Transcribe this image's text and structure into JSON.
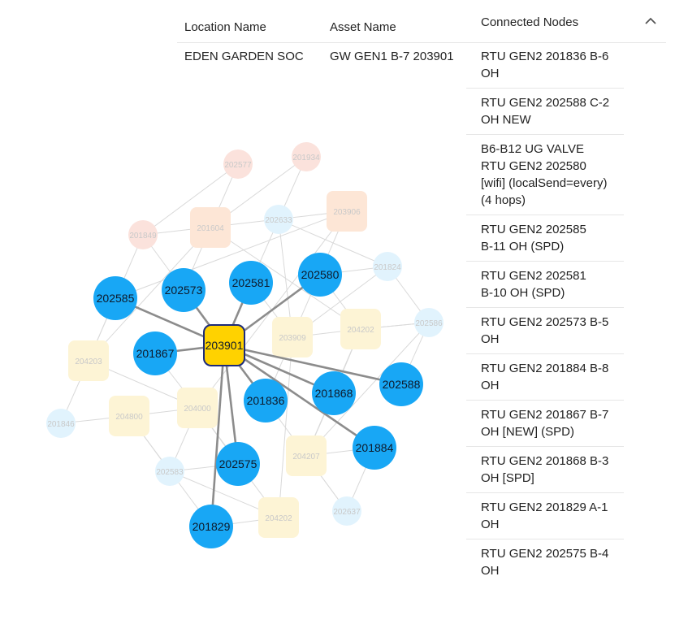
{
  "table": {
    "headers": {
      "location": "Location Name",
      "asset": "Asset Name",
      "connected": "Connected Nodes"
    },
    "row": {
      "location": "EDEN GARDEN SOC",
      "asset": "GW GEN1 B-7 203901",
      "connected_nodes": [
        "RTU GEN2 201836 B-6\nOH",
        "RTU GEN2 202588 C-2\nOH NEW",
        "B6-B12 UG VALVE\nRTU GEN2 202580\n[wifi] (localSend=every)\n(4 hops)",
        "RTU GEN2 202585\nB-11 OH (SPD)",
        "RTU GEN2 202581\nB-10 OH (SPD)",
        "RTU GEN2 202573 B-5\nOH",
        "RTU GEN2 201884 B-8\nOH",
        "RTU GEN2 201867 B-7\nOH [NEW] (SPD)",
        "RTU GEN2 201868 B-3\nOH [SPD]",
        "RTU GEN2 201829 A-1\nOH",
        "RTU GEN2 202575 B-4\nOH"
      ]
    },
    "collapse_icon": "chevron-up-icon"
  },
  "graph": {
    "colors": {
      "center_fill": "#ffd200",
      "center_stroke": "#1c2a7a",
      "connected_fill": "#18a7f5",
      "edge_strong": "#8c8c8c",
      "edge_faint": "#d9d9d9",
      "faint_blue": "#e1f3fd",
      "faint_yellow": "#fdf4d5",
      "faint_orange": "#fde6d6",
      "faint_pink": "#fbe2dc"
    },
    "center": {
      "label": "203901"
    },
    "connected": [
      {
        "label": "202585"
      },
      {
        "label": "202573"
      },
      {
        "label": "202581"
      },
      {
        "label": "202580"
      },
      {
        "label": "201867"
      },
      {
        "label": "201836"
      },
      {
        "label": "201868"
      },
      {
        "label": "202588"
      },
      {
        "label": "201884"
      },
      {
        "label": "202575"
      },
      {
        "label": "201829"
      }
    ],
    "background_nodes": [
      {
        "label": "202577",
        "kind": "pink-circle"
      },
      {
        "label": "201934",
        "kind": "pink-circle"
      },
      {
        "label": "201849",
        "kind": "pink-circle"
      },
      {
        "label": "201604",
        "kind": "orange-square"
      },
      {
        "label": "203906",
        "kind": "orange-square"
      },
      {
        "label": "202633",
        "kind": "blue-circle"
      },
      {
        "label": "201824",
        "kind": "blue-circle"
      },
      {
        "label": "202586",
        "kind": "blue-circle"
      },
      {
        "label": "201846",
        "kind": "blue-circle"
      },
      {
        "label": "202583",
        "kind": "blue-circle"
      },
      {
        "label": "202637",
        "kind": "blue-circle"
      },
      {
        "label": "204203",
        "kind": "yellow-square"
      },
      {
        "label": "203909",
        "kind": "yellow-square"
      },
      {
        "label": "204202",
        "kind": "yellow-square"
      },
      {
        "label": "204000",
        "kind": "yellow-square"
      },
      {
        "label": "204800",
        "kind": "yellow-square"
      },
      {
        "label": "204207",
        "kind": "yellow-square"
      },
      {
        "label": "204202",
        "kind": "yellow-square"
      }
    ]
  }
}
